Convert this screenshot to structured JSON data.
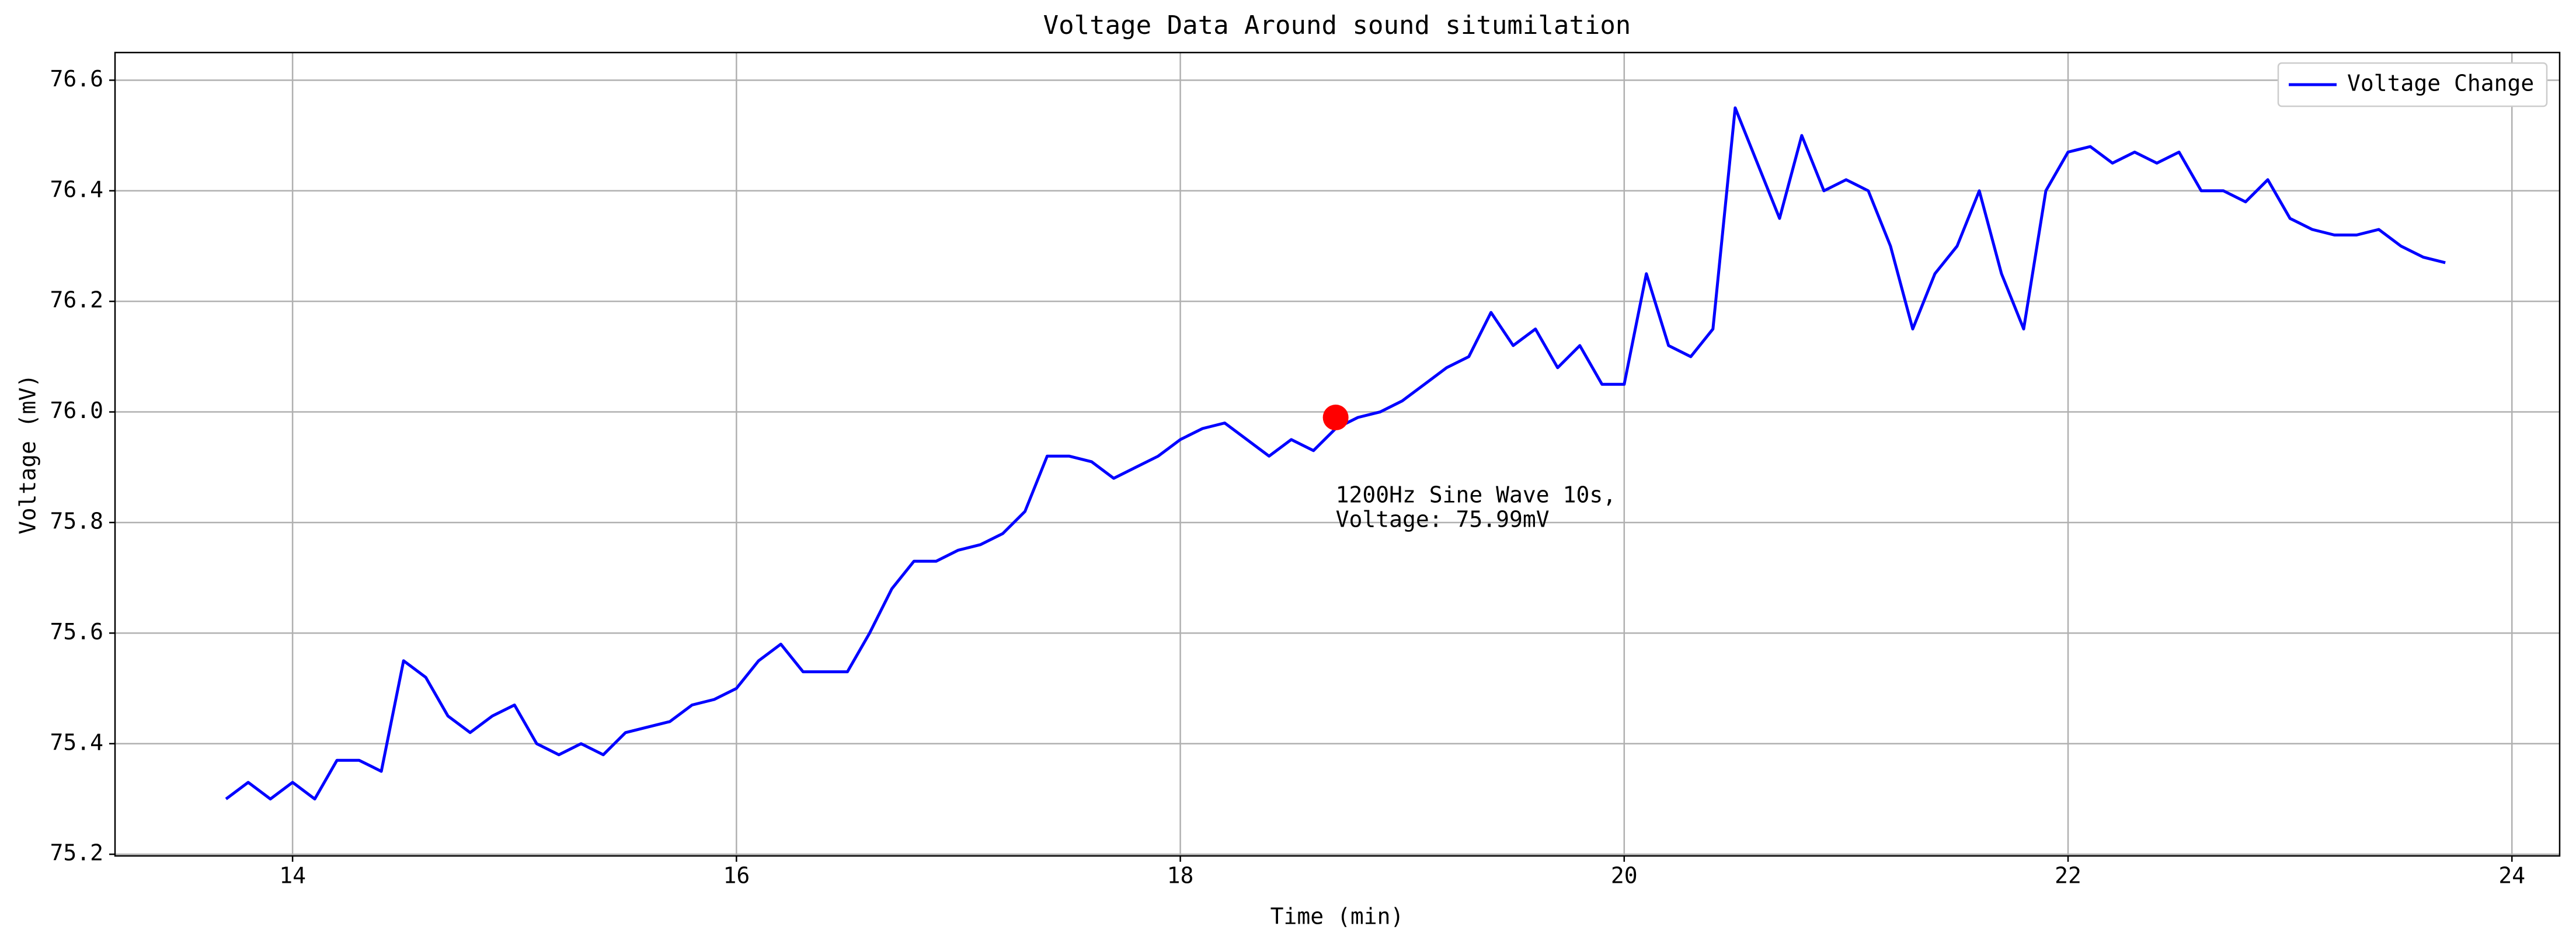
{
  "chart_data": {
    "type": "line",
    "title": "Voltage Data Around sound situmilation",
    "xlabel": "Time (min)",
    "ylabel": "Voltage (mV)",
    "x": [
      13.7,
      13.8,
      13.9,
      14.0,
      14.1,
      14.2,
      14.3,
      14.4,
      14.5,
      14.6,
      14.7,
      14.8,
      14.9,
      15.0,
      15.1,
      15.2,
      15.3,
      15.4,
      15.5,
      15.6,
      15.7,
      15.8,
      15.9,
      16.0,
      16.1,
      16.2,
      16.3,
      16.4,
      16.5,
      16.6,
      16.7,
      16.8,
      16.9,
      17.0,
      17.1,
      17.2,
      17.3,
      17.4,
      17.5,
      17.6,
      17.7,
      17.8,
      17.9,
      18.0,
      18.1,
      18.2,
      18.3,
      18.4,
      18.5,
      18.6,
      18.7,
      18.8,
      18.9,
      19.0,
      19.1,
      19.2,
      19.3,
      19.4,
      19.5,
      19.6,
      19.7,
      19.8,
      19.9,
      20.0,
      20.1,
      20.2,
      20.3,
      20.4,
      20.5,
      20.6,
      20.7,
      20.8,
      20.9,
      21.0,
      21.1,
      21.2,
      21.3,
      21.4,
      21.5,
      21.6,
      21.7,
      21.8,
      21.9,
      22.0,
      22.1,
      22.2,
      22.3,
      22.4,
      22.5,
      22.6,
      22.7,
      22.8,
      22.9,
      23.0,
      23.1,
      23.2,
      23.3,
      23.4,
      23.5,
      23.6,
      23.7
    ],
    "series": [
      {
        "name": "Voltage Change",
        "color": "#0000ff",
        "values": [
          75.3,
          75.33,
          75.3,
          75.33,
          75.3,
          75.37,
          75.37,
          75.35,
          75.55,
          75.52,
          75.45,
          75.42,
          75.45,
          75.47,
          75.4,
          75.38,
          75.4,
          75.38,
          75.42,
          75.43,
          75.44,
          75.47,
          75.48,
          75.5,
          75.55,
          75.58,
          75.53,
          75.53,
          75.53,
          75.6,
          75.68,
          75.73,
          75.73,
          75.75,
          75.76,
          75.78,
          75.82,
          75.92,
          75.92,
          75.91,
          75.88,
          75.9,
          75.92,
          75.95,
          75.97,
          75.98,
          75.95,
          75.92,
          75.95,
          75.93,
          75.97,
          75.99,
          76.0,
          76.02,
          76.05,
          76.08,
          76.1,
          76.18,
          76.12,
          76.15,
          76.08,
          76.12,
          76.05,
          76.05,
          76.25,
          76.12,
          76.1,
          76.15,
          76.55,
          76.45,
          76.35,
          76.5,
          76.4,
          76.42,
          76.4,
          76.3,
          76.15,
          76.25,
          76.3,
          76.4,
          76.25,
          76.15,
          76.4,
          76.47,
          76.48,
          76.45,
          76.47,
          76.45,
          76.47,
          76.4,
          76.4,
          76.38,
          76.42,
          76.35,
          76.33,
          76.32,
          76.32,
          76.33,
          76.3,
          76.28,
          76.27
        ]
      }
    ],
    "annotation": {
      "x": 18.7,
      "y": 75.99,
      "color": "#ff0000",
      "lines": [
        "1200Hz Sine Wave 10s,",
        "Voltage: 75.99mV"
      ]
    },
    "xlim": [
      13.2,
      24.215
    ],
    "ylim": [
      75.197,
      76.65
    ],
    "xticks": [
      14,
      16,
      18,
      20,
      22,
      24
    ],
    "yticks": [
      75.2,
      75.4,
      75.6,
      75.8,
      {
        "value": 76,
        "label": "76.0"
      },
      76.2,
      76.4,
      76.6
    ],
    "grid": true,
    "legend": "upper right"
  }
}
